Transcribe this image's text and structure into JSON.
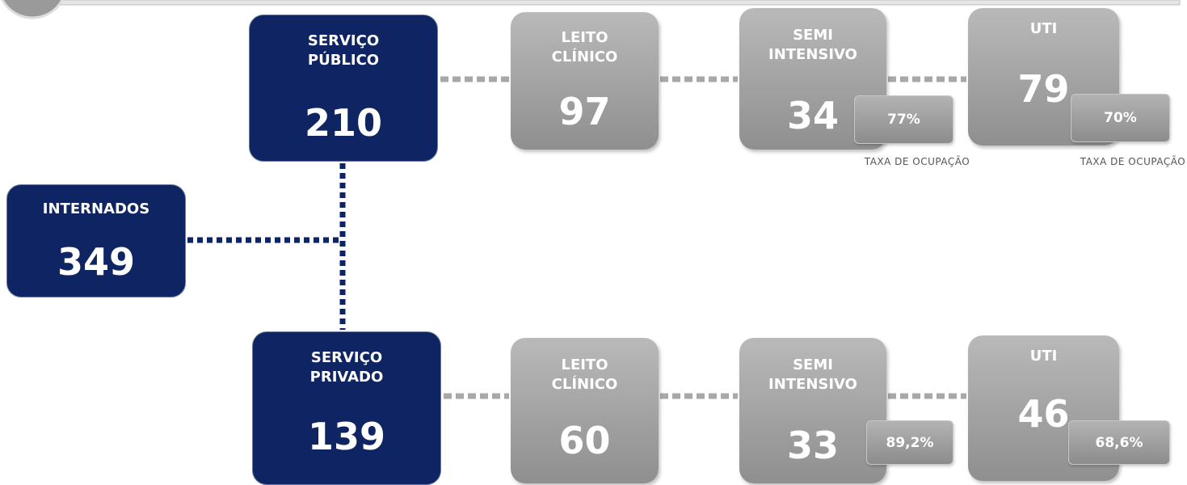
{
  "nodes": [
    {
      "label_lines": [
        "INTERNADOS"
      ],
      "value": "349"
    },
    {
      "label_lines": [
        "SERVIÇO",
        "PÚBLICO"
      ],
      "value": "210"
    },
    {
      "label_lines": [
        "SERVIÇO",
        "PRIVADO"
      ],
      "value": "139"
    },
    {
      "label_lines": [
        "LEITO",
        "CLÍNICO"
      ],
      "value": "97"
    },
    {
      "label_lines": [
        "SEMI",
        "INTENSIVO"
      ],
      "value": "34",
      "occupancy": "77%",
      "occupancy_caption": "TAXA DE OCUPAÇÃO"
    },
    {
      "label_lines": [
        "UTI"
      ],
      "value": "79",
      "occupancy": "70%",
      "occupancy_caption": "TAXA DE OCUPAÇÃO"
    },
    {
      "label_lines": [
        "LEITO",
        "CLÍNICO"
      ],
      "value": "60"
    },
    {
      "label_lines": [
        "SEMI",
        "INTENSIVO"
      ],
      "value": "33",
      "occupancy": "89,2%"
    },
    {
      "label_lines": [
        "UTI"
      ],
      "value": "46",
      "occupancy": "68,6%"
    }
  ]
}
